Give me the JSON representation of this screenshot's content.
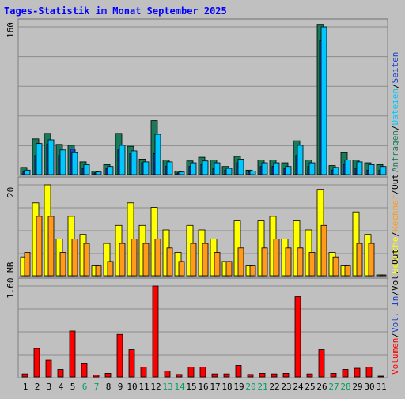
{
  "chart_data": [
    {
      "type": "bar",
      "title": "Tages-Statistik im Monat September 2025",
      "ylabel": "160",
      "ylim": [
        0,
        160
      ],
      "categories": [
        "1",
        "2",
        "3",
        "4",
        "5",
        "6",
        "7",
        "8",
        "9",
        "10",
        "11",
        "12",
        "13",
        "14",
        "15",
        "16",
        "17",
        "18",
        "19",
        "20",
        "21",
        "22",
        "23",
        "24",
        "25",
        "26",
        "27",
        "28",
        "29",
        "30",
        "31"
      ],
      "weekend_days": [
        "6",
        "7",
        "13",
        "14",
        "20",
        "21",
        "27",
        "28"
      ],
      "legend": [
        "Anfragen",
        "/",
        "Dateien",
        "/",
        "Seiten"
      ],
      "series": [
        {
          "name": "Anfragen",
          "color": "#1a7a5a",
          "values": [
            7,
            38,
            44,
            32,
            31,
            13,
            3,
            10,
            44,
            30,
            16,
            58,
            15,
            3,
            14,
            18,
            15,
            8,
            19,
            4,
            15,
            15,
            12,
            36,
            15,
            162,
            9,
            23,
            15,
            12,
            10
          ]
        },
        {
          "name": "Dateien",
          "color": "#00c8ff",
          "values": [
            4,
            33,
            37,
            26,
            23,
            10,
            2,
            8,
            31,
            25,
            13,
            43,
            13,
            2,
            12,
            14,
            12,
            6,
            16,
            3,
            12,
            12,
            8,
            31,
            12,
            160,
            7,
            15,
            13,
            10,
            8
          ]
        },
        {
          "name": "Seiten",
          "color": "#1b3fcf",
          "values": [
            2,
            20,
            32,
            20,
            27,
            6,
            1,
            6,
            26,
            22,
            12,
            22,
            8,
            1,
            8,
            10,
            6,
            4,
            12,
            2,
            8,
            8,
            6,
            20,
            8,
            145,
            4,
            10,
            6,
            4,
            4
          ]
        }
      ]
    },
    {
      "type": "bar",
      "ylabel": "20",
      "ylim": [
        0,
        20
      ],
      "categories": [
        "1",
        "2",
        "3",
        "4",
        "5",
        "6",
        "7",
        "8",
        "9",
        "10",
        "11",
        "12",
        "13",
        "14",
        "15",
        "16",
        "17",
        "18",
        "19",
        "20",
        "21",
        "22",
        "23",
        "24",
        "25",
        "26",
        "27",
        "28",
        "29",
        "30",
        "31"
      ],
      "legend": [
        "Besuche",
        "/",
        "Rechner",
        "/",
        "Out"
      ],
      "series": [
        {
          "name": "Besuche",
          "color": "#ffff00",
          "values": [
            4,
            16,
            20,
            8,
            13,
            9,
            2,
            7,
            11,
            16,
            11,
            15,
            10,
            5,
            11,
            10,
            8,
            3,
            12,
            2,
            12,
            13,
            8,
            12,
            10,
            19,
            5,
            2,
            14,
            9,
            0
          ]
        },
        {
          "name": "Rechner",
          "color": "#ff9a1a",
          "values": [
            5,
            13,
            13,
            5,
            8,
            7,
            2,
            3,
            7,
            8,
            7,
            8,
            6,
            3,
            7,
            7,
            5,
            3,
            6,
            2,
            6,
            8,
            6,
            6,
            5,
            11,
            4,
            2,
            7,
            7,
            0
          ]
        }
      ]
    },
    {
      "type": "bar",
      "ylabel": "1.60 MB",
      "ylim": [
        0,
        1.6
      ],
      "categories": [
        "1",
        "2",
        "3",
        "4",
        "5",
        "6",
        "7",
        "8",
        "9",
        "10",
        "11",
        "12",
        "13",
        "14",
        "15",
        "16",
        "17",
        "18",
        "19",
        "20",
        "21",
        "22",
        "23",
        "24",
        "25",
        "26",
        "27",
        "28",
        "29",
        "30",
        "31"
      ],
      "legend": [
        "Volumen",
        "/",
        "Vol. In",
        "/",
        "Vol. Out"
      ],
      "series": [
        {
          "name": "Volumen",
          "color": "#ff0000",
          "values": [
            0.04,
            0.49,
            0.28,
            0.12,
            0.8,
            0.22,
            0.02,
            0.05,
            0.74,
            0.47,
            0.16,
            1.6,
            0.09,
            0.03,
            0.16,
            0.16,
            0.04,
            0.04,
            0.19,
            0.03,
            0.05,
            0.04,
            0.05,
            1.41,
            0.04,
            0.47,
            0.05,
            0.12,
            0.14,
            0.16,
            0.0
          ]
        }
      ]
    }
  ],
  "colors": {
    "title": "#0000ff",
    "weekday_label": "#000000",
    "weekend_label": "#00a060",
    "legend_slash": "#000000",
    "Out": "#000000",
    "Vol. In": "#1b3fcf",
    "Vol. Out": "#000000"
  }
}
